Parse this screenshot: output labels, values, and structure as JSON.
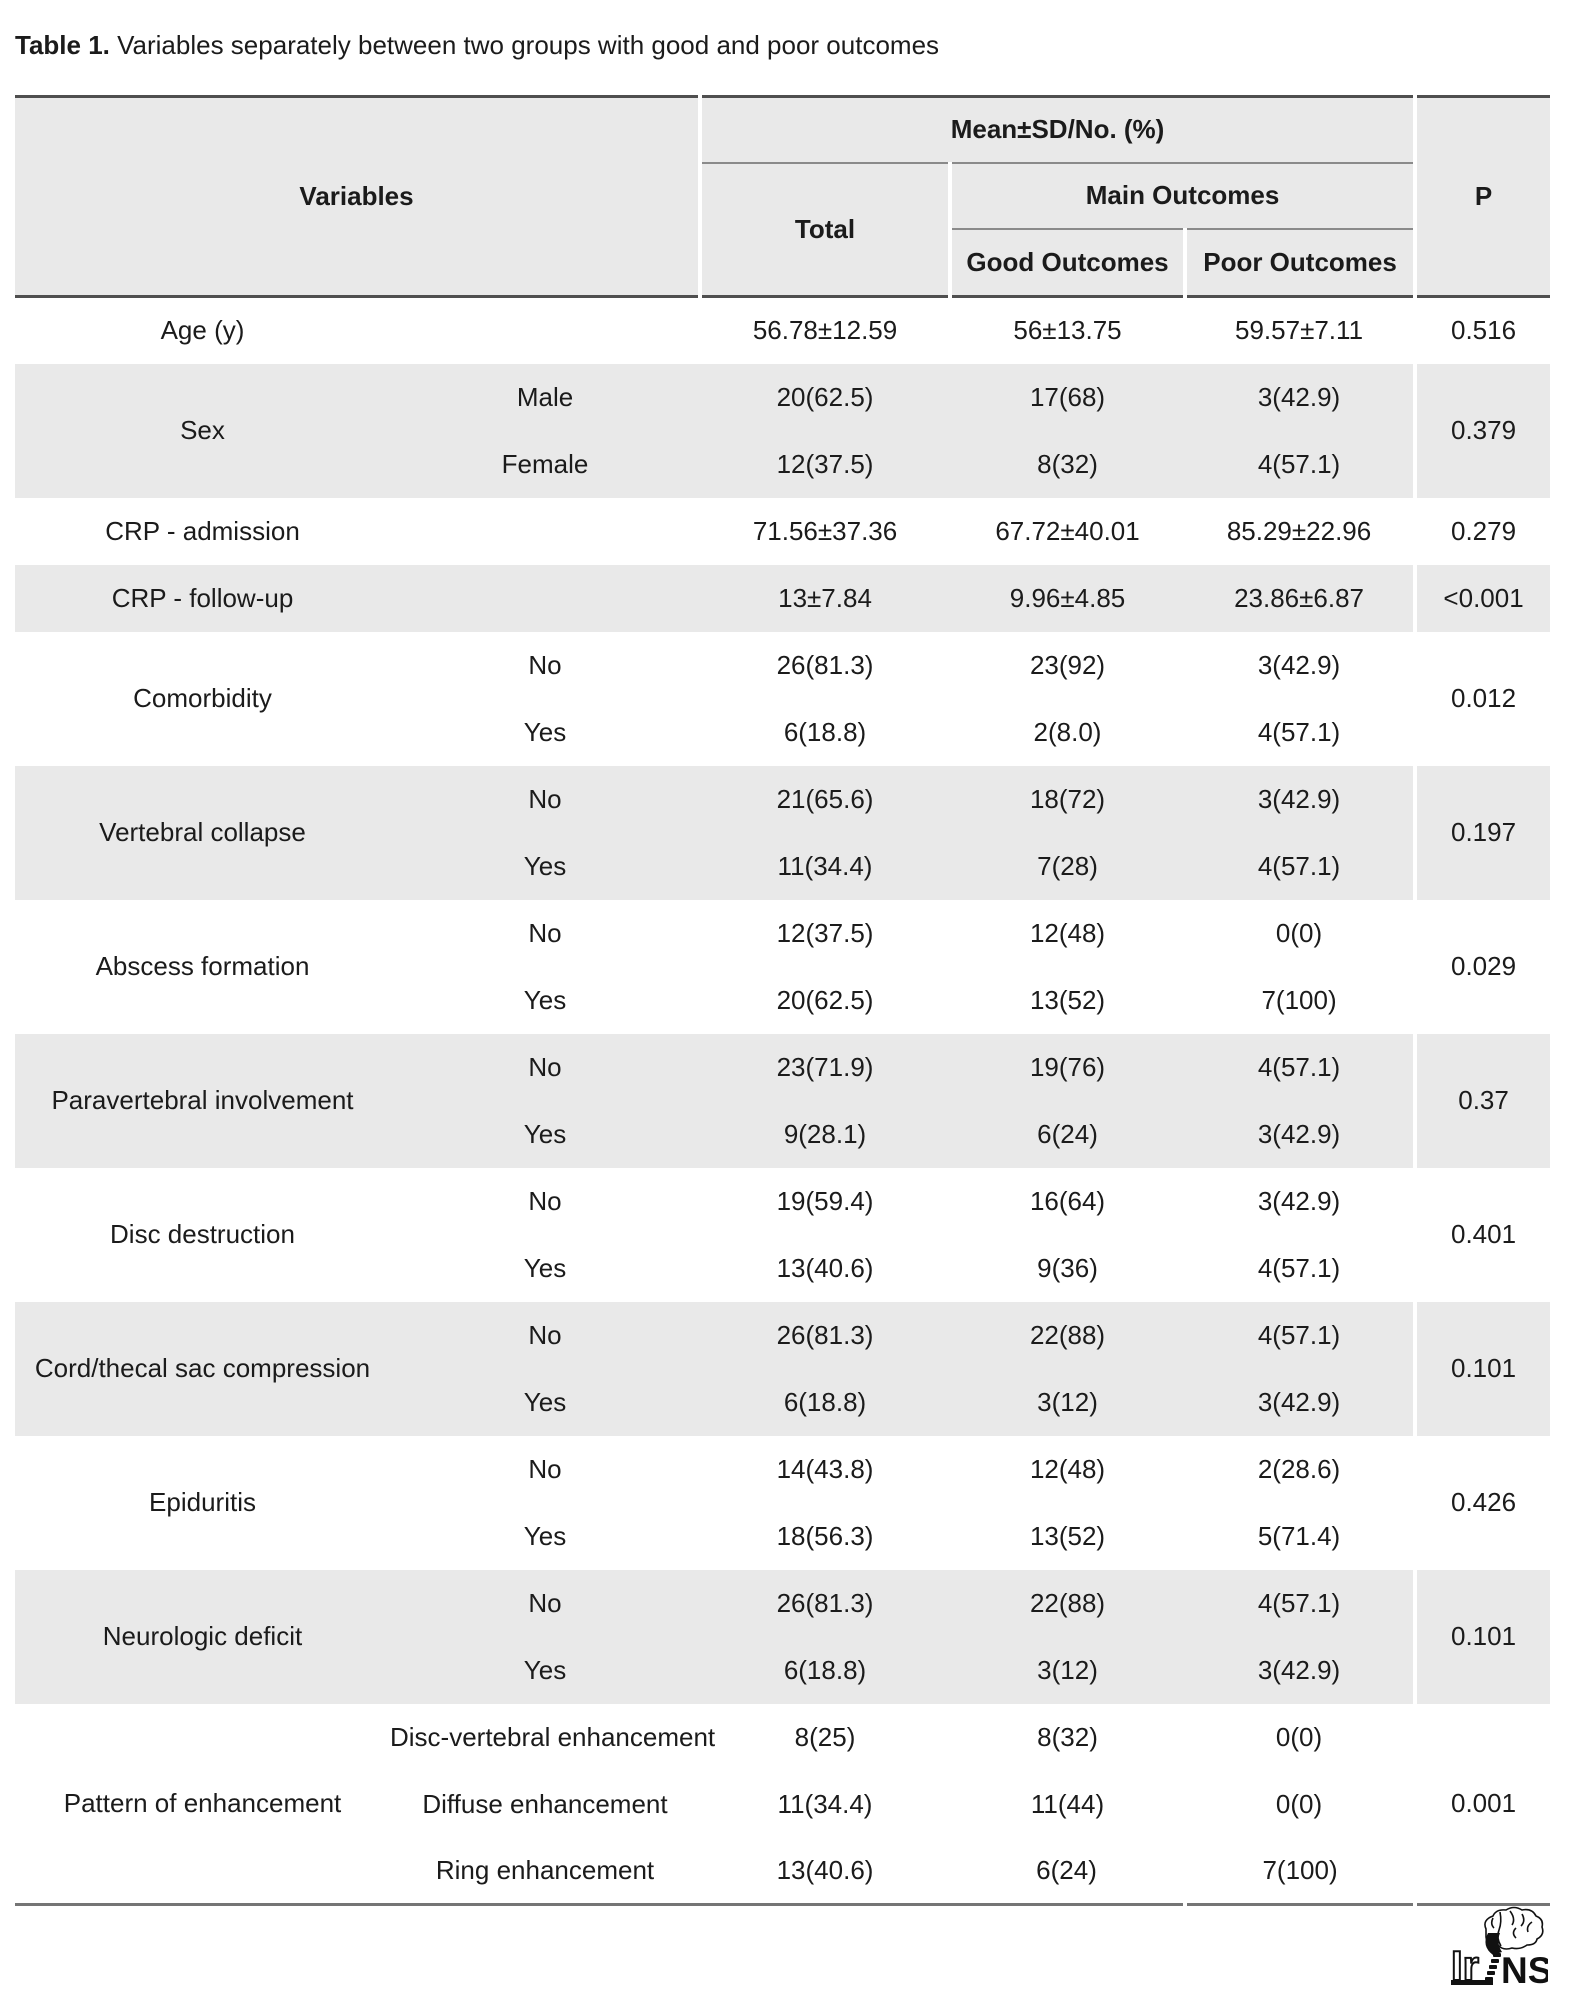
{
  "title": {
    "label": "Table 1.",
    "text": "Variables separately between two groups with good and poor outcomes"
  },
  "header": {
    "variables": "Variables",
    "mean_sd": "Mean±SD/No. (%)",
    "total": "Total",
    "main_outcomes": "Main Outcomes",
    "good_outcomes": "Good Outcomes",
    "poor_outcomes": "Poor Outcomes",
    "p": "P"
  },
  "rows": [
    {
      "variable": "Age (y)",
      "p": "0.516",
      "sub": [
        {
          "label": "",
          "total": "56.78±12.59",
          "good": "56±13.75",
          "poor": "59.57±7.11"
        }
      ]
    },
    {
      "variable": "Sex",
      "p": "0.379",
      "sub": [
        {
          "label": "Male",
          "total": "20(62.5)",
          "good": "17(68)",
          "poor": "3(42.9)"
        },
        {
          "label": "Female",
          "total": "12(37.5)",
          "good": "8(32)",
          "poor": "4(57.1)"
        }
      ]
    },
    {
      "variable": "CRP - admission",
      "p": "0.279",
      "sub": [
        {
          "label": "",
          "total": "71.56±37.36",
          "good": "67.72±40.01",
          "poor": "85.29±22.96"
        }
      ]
    },
    {
      "variable": "CRP - follow-up",
      "p": "<0.001",
      "sub": [
        {
          "label": "",
          "total": "13±7.84",
          "good": "9.96±4.85",
          "poor": "23.86±6.87"
        }
      ]
    },
    {
      "variable": "Comorbidity",
      "p": "0.012",
      "sub": [
        {
          "label": "No",
          "total": "26(81.3)",
          "good": "23(92)",
          "poor": "3(42.9)"
        },
        {
          "label": "Yes",
          "total": "6(18.8)",
          "good": "2(8.0)",
          "poor": "4(57.1)"
        }
      ]
    },
    {
      "variable": "Vertebral collapse",
      "p": "0.197",
      "sub": [
        {
          "label": "No",
          "total": "21(65.6)",
          "good": "18(72)",
          "poor": "3(42.9)"
        },
        {
          "label": "Yes",
          "total": "11(34.4)",
          "good": "7(28)",
          "poor": "4(57.1)"
        }
      ]
    },
    {
      "variable": "Abscess formation",
      "p": "0.029",
      "sub": [
        {
          "label": "No",
          "total": "12(37.5)",
          "good": "12(48)",
          "poor": "0(0)"
        },
        {
          "label": "Yes",
          "total": "20(62.5)",
          "good": "13(52)",
          "poor": "7(100)"
        }
      ]
    },
    {
      "variable": "Paravertebral involvement",
      "p": "0.37",
      "sub": [
        {
          "label": "No",
          "total": "23(71.9)",
          "good": "19(76)",
          "poor": "4(57.1)"
        },
        {
          "label": "Yes",
          "total": "9(28.1)",
          "good": "6(24)",
          "poor": "3(42.9)"
        }
      ]
    },
    {
      "variable": "Disc destruction",
      "p": "0.401",
      "sub": [
        {
          "label": "No",
          "total": "19(59.4)",
          "good": "16(64)",
          "poor": "3(42.9)"
        },
        {
          "label": "Yes",
          "total": "13(40.6)",
          "good": "9(36)",
          "poor": "4(57.1)"
        }
      ]
    },
    {
      "variable": "Cord/thecal sac compression",
      "p": "0.101",
      "sub": [
        {
          "label": "No",
          "total": "26(81.3)",
          "good": "22(88)",
          "poor": "4(57.1)"
        },
        {
          "label": "Yes",
          "total": "6(18.8)",
          "good": "3(12)",
          "poor": "3(42.9)"
        }
      ]
    },
    {
      "variable": "Epiduritis",
      "p": "0.426",
      "sub": [
        {
          "label": "No",
          "total": "14(43.8)",
          "good": "12(48)",
          "poor": "2(28.6)"
        },
        {
          "label": "Yes",
          "total": "18(56.3)",
          "good": "13(52)",
          "poor": "5(71.4)"
        }
      ]
    },
    {
      "variable": "Neurologic deficit",
      "p": "0.101",
      "sub": [
        {
          "label": "No",
          "total": "26(81.3)",
          "good": "22(88)",
          "poor": "4(57.1)"
        },
        {
          "label": "Yes",
          "total": "6(18.8)",
          "good": "3(12)",
          "poor": "3(42.9)"
        }
      ]
    },
    {
      "variable": "Pattern of enhancement",
      "p": "0.001",
      "sub": [
        {
          "label": "Disc-vertebral enhancement",
          "total": "8(25)",
          "good": "8(32)",
          "poor": "0(0)"
        },
        {
          "label": "Diffuse enhancement",
          "total": "11(34.4)",
          "good": "11(44)",
          "poor": "0(0)"
        },
        {
          "label": "Ring enhancement",
          "total": "13(40.6)",
          "good": "6(24)",
          "poor": "7(100)"
        }
      ]
    }
  ],
  "logo": {
    "text_outline": "Ir",
    "text_solid": "NS"
  },
  "colors": {
    "band_gray": "#e9e9e9",
    "frame_dark": "#4f4f4f",
    "frame_bottom": "#757575",
    "line_thin": "#8a8a8a",
    "text": "#1b1b1b"
  }
}
